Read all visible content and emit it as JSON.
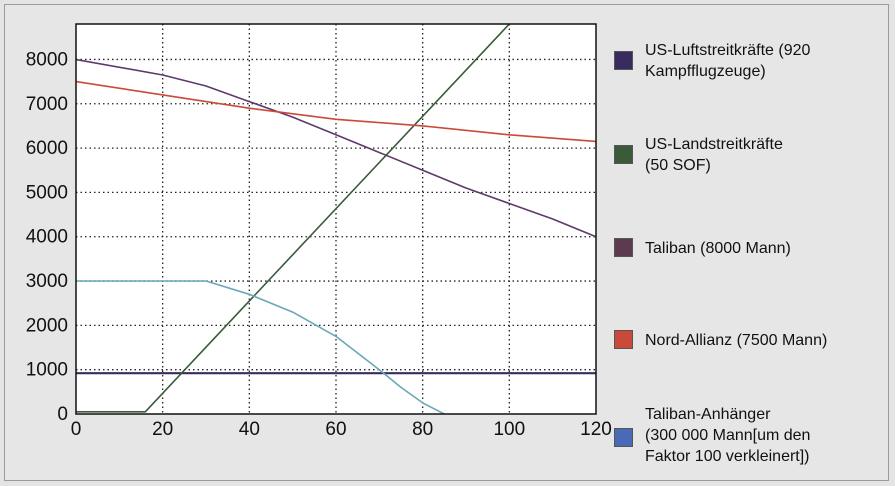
{
  "chart_data": {
    "type": "line",
    "title": "",
    "xlabel": "",
    "ylabel": "",
    "xlim": [
      0,
      120
    ],
    "ylim": [
      0,
      8800
    ],
    "x_ticks": [
      "0",
      "20",
      "40",
      "60",
      "80",
      "100",
      "120"
    ],
    "y_ticks": [
      "0",
      "1000",
      "2000",
      "3000",
      "4000",
      "5000",
      "6000",
      "7000",
      "8000"
    ],
    "grid": true,
    "legend_position": "right",
    "series": [
      {
        "name": "US-Luftstreitkräfte (920 Kampfflugzeuge)",
        "color": "#3a2b5e",
        "x": [
          0,
          120
        ],
        "y": [
          920,
          920
        ]
      },
      {
        "name": "US-Landstreitkräfte (50 SOF)",
        "color": "#3a5a3a",
        "x": [
          0,
          16,
          100
        ],
        "y": [
          50,
          50,
          8800
        ]
      },
      {
        "name": "Taliban (8000 Mann)",
        "color": "#5e3a6a",
        "x": [
          0,
          20,
          30,
          40,
          50,
          60,
          70,
          80,
          90,
          100,
          110,
          120
        ],
        "y": [
          8000,
          7650,
          7400,
          7050,
          6700,
          6300,
          5900,
          5500,
          5100,
          4750,
          4400,
          4000
        ]
      },
      {
        "name": "Nord-Allianz (7500 Mann)",
        "color": "#c94a3a",
        "x": [
          0,
          20,
          40,
          60,
          80,
          100,
          120
        ],
        "y": [
          7500,
          7200,
          6900,
          6650,
          6500,
          6300,
          6150
        ]
      },
      {
        "name": "Taliban-Anhänger (300 000 Mann[um den Faktor 100 verkleinert])",
        "color": "#6aa8b8",
        "x": [
          0,
          30,
          40,
          50,
          60,
          70,
          75,
          80,
          85
        ],
        "y": [
          3000,
          3000,
          2700,
          2300,
          1750,
          1000,
          600,
          250,
          0
        ]
      }
    ]
  },
  "legend": {
    "items": [
      {
        "lines": [
          "US-Luftstreitkräfte (920",
          "Kampfflugzeuge)"
        ],
        "color": "#3a2b5e"
      },
      {
        "lines": [
          "US-Landstreitkräfte",
          "(50 SOF)"
        ],
        "color": "#3a5a3a"
      },
      {
        "lines": [
          "Taliban (8000 Mann)"
        ],
        "color": "#5e3a4e"
      },
      {
        "lines": [
          "Nord-Allianz (7500 Mann)"
        ],
        "color": "#c94a3a"
      },
      {
        "lines": [
          "Taliban-Anhänger",
          "(300 000 Mann[um den",
          "Faktor 100 verkleinert])"
        ],
        "color": "#4a6ab8"
      }
    ]
  }
}
